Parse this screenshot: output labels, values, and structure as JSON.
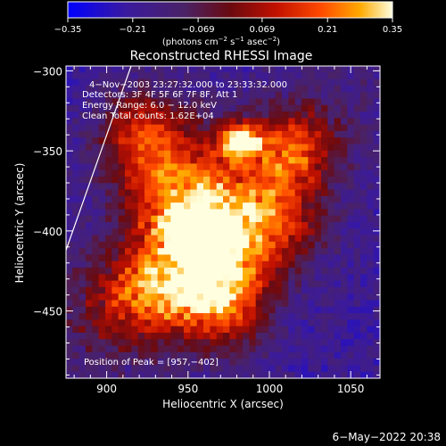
{
  "colorbar": {
    "ticks": [
      "−0.35",
      "−0.21",
      "−0.069",
      "0.069",
      "0.21",
      "0.35"
    ],
    "unit_label": "(photons cm",
    "unit_exp1": "−2",
    "unit_mid": " s",
    "unit_exp2": "−1",
    "unit_mid2": " asec",
    "unit_exp3": "−2",
    "unit_end": ")"
  },
  "plot": {
    "title": "Reconstructed RHESSI Image",
    "xlabel": "Heliocentric X (arcsec)",
    "ylabel": "Heliocentric Y (arcsec)",
    "annotations": {
      "time": "4−Nov−2003 23:27:32.000 to 23:33:32.000",
      "detectors": "Detectors: 3F 4F 5F 6F 7F 8F, Att 1",
      "energy": "Energy Range: 6.0 − 12.0 keV",
      "method": "Clean     Total counts: 1.62E+04",
      "peak": "Position of Peak = [957,−402]"
    }
  },
  "footer": {
    "date": "6−May−2022 20:38"
  },
  "colors": {
    "low": "#0000ff",
    "mid": "#ff0000",
    "high": "#ffffff"
  },
  "chart_data": {
    "type": "heatmap",
    "title": "Reconstructed RHESSI Image",
    "xlabel": "Heliocentric X (arcsec)",
    "ylabel": "Heliocentric Y (arcsec)",
    "xlim": [
      875,
      1068
    ],
    "ylim": [
      -492,
      -297
    ],
    "xticks": [
      900,
      950,
      1000,
      1050
    ],
    "yticks": [
      -300,
      -350,
      -400,
      -450
    ],
    "color_range": [
      -0.35,
      0.35
    ],
    "colorbar_ticks": [
      -0.35,
      -0.21,
      -0.069,
      0.069,
      0.21,
      0.35
    ],
    "sources": [
      {
        "x": 957,
        "y": -402,
        "sigma_x": 12,
        "sigma_y": 10,
        "amp": 0.35
      },
      {
        "x": 982,
        "y": -344,
        "sigma_x": 9,
        "sigma_y": 7,
        "amp": 0.3
      },
      {
        "x": 945,
        "y": -380,
        "sigma_x": 24,
        "sigma_y": 30,
        "amp": 0.14
      },
      {
        "x": 935,
        "y": -440,
        "sigma_x": 28,
        "sigma_y": 18,
        "amp": 0.12
      },
      {
        "x": 975,
        "y": -440,
        "sigma_x": 18,
        "sigma_y": 24,
        "amp": 0.12
      },
      {
        "x": 1000,
        "y": -395,
        "sigma_x": 22,
        "sigma_y": 22,
        "amp": 0.1
      },
      {
        "x": 920,
        "y": -340,
        "sigma_x": 18,
        "sigma_y": 20,
        "amp": 0.08
      },
      {
        "x": 1015,
        "y": -350,
        "sigma_x": 18,
        "sigma_y": 16,
        "amp": 0.07
      }
    ],
    "limb_line": {
      "x": [
        875,
        915
      ],
      "y": [
        -412,
        -297
      ]
    }
  }
}
